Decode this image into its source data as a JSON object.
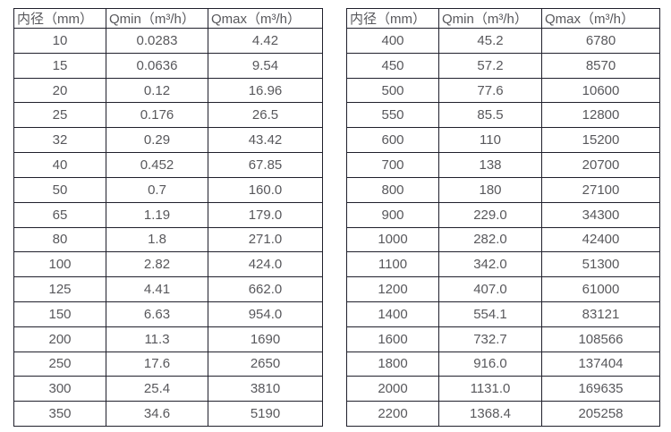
{
  "tables": [
    {
      "name": "flow-spec-table-small-diameters",
      "headers": [
        "内径（mm）",
        "Qmin（m³/h）",
        "Qmax（m³/h）"
      ],
      "rows": [
        [
          "10",
          "0.0283",
          "4.42"
        ],
        [
          "15",
          "0.0636",
          "9.54"
        ],
        [
          "20",
          "0.12",
          "16.96"
        ],
        [
          "25",
          "0.176",
          "26.5"
        ],
        [
          "32",
          "0.29",
          "43.42"
        ],
        [
          "40",
          "0.452",
          "67.85"
        ],
        [
          "50",
          "0.7",
          "160.0"
        ],
        [
          "65",
          "1.19",
          "179.0"
        ],
        [
          "80",
          "1.8",
          "271.0"
        ],
        [
          "100",
          "2.82",
          "424.0"
        ],
        [
          "125",
          "4.41",
          "662.0"
        ],
        [
          "150",
          "6.63",
          "954.0"
        ],
        [
          "200",
          "11.3",
          "1690"
        ],
        [
          "250",
          "17.6",
          "2650"
        ],
        [
          "300",
          "25.4",
          "3810"
        ],
        [
          "350",
          "34.6",
          "5190"
        ]
      ]
    },
    {
      "name": "flow-spec-table-large-diameters",
      "headers": [
        "内径（mm）",
        "Qmin（m³/h）",
        "Qmax（m³/h）"
      ],
      "rows": [
        [
          "400",
          "45.2",
          "6780"
        ],
        [
          "450",
          "57.2",
          "8570"
        ],
        [
          "500",
          "77.6",
          "10600"
        ],
        [
          "550",
          "85.5",
          "12800"
        ],
        [
          "600",
          "110",
          "15200"
        ],
        [
          "700",
          "138",
          "20700"
        ],
        [
          "800",
          "180",
          "27100"
        ],
        [
          "900",
          "229.0",
          "34300"
        ],
        [
          "1000",
          "282.0",
          "42400"
        ],
        [
          "1100",
          "342.0",
          "51300"
        ],
        [
          "1200",
          "407.0",
          "61000"
        ],
        [
          "1400",
          "554.1",
          "83121"
        ],
        [
          "1600",
          "732.7",
          "108566"
        ],
        [
          "1800",
          "916.0",
          "137404"
        ],
        [
          "2000",
          "1131.0",
          "169635"
        ],
        [
          "2200",
          "1368.4",
          "205258"
        ]
      ]
    }
  ],
  "colors": {
    "border": "#20202c",
    "text": "#58585c",
    "background": "#ffffff"
  }
}
